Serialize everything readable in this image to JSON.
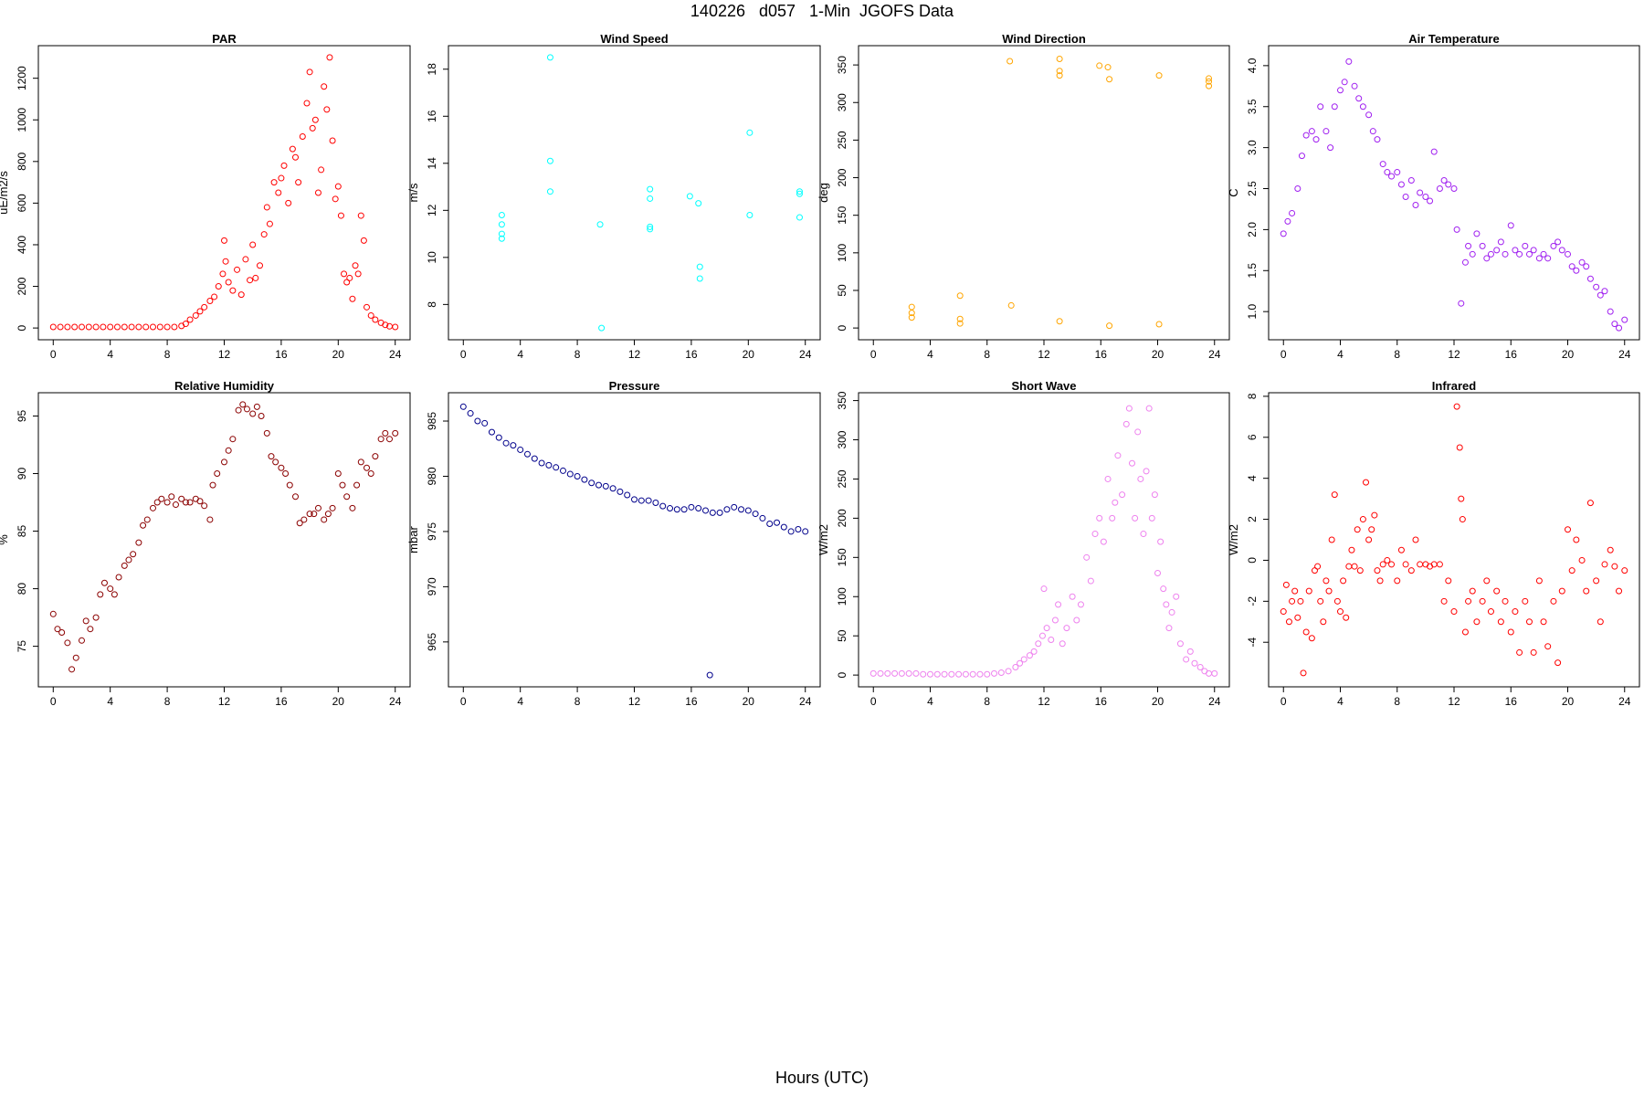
{
  "title": "140226   d057   1-Min  JGOFS Data",
  "xcaption": "Hours (UTC)",
  "chart_data": [
    {
      "type": "scatter",
      "title": "PAR",
      "ylabel": "uE/m2/s",
      "color": "#ff0000",
      "xlim": [
        0,
        24
      ],
      "ylim": [
        0,
        1300
      ],
      "xticks": [
        0,
        4,
        8,
        12,
        16,
        20,
        24
      ],
      "yticks": [
        0,
        200,
        400,
        600,
        800,
        1000,
        1200
      ],
      "x": [
        0,
        0.5,
        1,
        1.5,
        2,
        2.5,
        3,
        3.5,
        4,
        4.5,
        5,
        5.5,
        6,
        6.5,
        7,
        7.5,
        8,
        8.5,
        9,
        9.3,
        9.6,
        10,
        10.3,
        10.6,
        11,
        11.3,
        11.6,
        11.9,
        12,
        12.1,
        12.3,
        12.6,
        12.9,
        13.2,
        13.5,
        13.8,
        14,
        14.2,
        14.5,
        14.8,
        15,
        15.2,
        15.5,
        15.8,
        16,
        16.2,
        16.5,
        16.8,
        17,
        17.2,
        17.5,
        17.8,
        18,
        18.2,
        18.4,
        18.6,
        18.8,
        19,
        19.2,
        19.4,
        19.6,
        19.8,
        20,
        20.2,
        20.4,
        20.6,
        20.8,
        21,
        21.2,
        21.4,
        21.6,
        21.8,
        22,
        22.3,
        22.6,
        23,
        23.3,
        23.6,
        24
      ],
      "y": [
        5,
        5,
        5,
        5,
        5,
        5,
        5,
        5,
        5,
        5,
        5,
        5,
        5,
        5,
        5,
        5,
        5,
        5,
        10,
        20,
        40,
        60,
        80,
        100,
        130,
        150,
        200,
        260,
        420,
        320,
        220,
        180,
        280,
        160,
        330,
        230,
        400,
        240,
        300,
        450,
        580,
        500,
        700,
        650,
        720,
        780,
        600,
        860,
        820,
        700,
        920,
        1080,
        1230,
        960,
        1000,
        650,
        760,
        1160,
        1050,
        1300,
        900,
        620,
        680,
        540,
        260,
        220,
        240,
        140,
        300,
        260,
        540,
        420,
        100,
        60,
        40,
        25,
        15,
        8,
        5
      ]
    },
    {
      "type": "scatter",
      "title": "Wind Speed",
      "ylabel": "m/s",
      "color": "#00ffff",
      "xlim": [
        0,
        24
      ],
      "ylim": [
        7,
        18.5
      ],
      "xticks": [
        0,
        4,
        8,
        12,
        16,
        20,
        24
      ],
      "yticks": [
        8,
        10,
        12,
        14,
        16,
        18
      ],
      "x": [
        2.7,
        2.7,
        2.7,
        2.7,
        6.1,
        6.1,
        6.1,
        9.6,
        9.7,
        13.1,
        13.1,
        13.1,
        13.1,
        15.9,
        16.5,
        16.6,
        16.6,
        20.1,
        20.1,
        23.6,
        23.6,
        23.6
      ],
      "y": [
        11.8,
        11.4,
        11.0,
        10.8,
        18.5,
        14.1,
        12.8,
        11.4,
        7.0,
        12.9,
        12.5,
        11.3,
        11.2,
        12.6,
        12.3,
        9.6,
        9.1,
        15.3,
        11.8,
        12.8,
        12.7,
        11.7
      ]
    },
    {
      "type": "scatter",
      "title": "Wind Direction",
      "ylabel": "deg",
      "color": "#ffa500",
      "xlim": [
        0,
        24
      ],
      "ylim": [
        0,
        360
      ],
      "xticks": [
        0,
        4,
        8,
        12,
        16,
        20,
        24
      ],
      "yticks": [
        0,
        50,
        100,
        150,
        200,
        250,
        300,
        350
      ],
      "x": [
        2.7,
        2.7,
        2.7,
        6.1,
        6.1,
        6.1,
        9.6,
        9.7,
        13.1,
        13.1,
        13.1,
        13.1,
        15.9,
        16.5,
        16.6,
        16.6,
        20.1,
        20.1,
        23.6,
        23.6,
        23.6
      ],
      "y": [
        28,
        20,
        14,
        43,
        12,
        6,
        355,
        30,
        358,
        342,
        336,
        9,
        349,
        347,
        331,
        3,
        336,
        5,
        332,
        328,
        322
      ]
    },
    {
      "type": "scatter",
      "title": "Air Temperature",
      "ylabel": "C",
      "color": "#a020f0",
      "xlim": [
        0,
        24
      ],
      "ylim": [
        0.8,
        4.1
      ],
      "xticks": [
        0,
        4,
        8,
        12,
        16,
        20,
        24
      ],
      "yticks": [
        1.0,
        1.5,
        2.0,
        2.5,
        3.0,
        3.5,
        4.0
      ],
      "x": [
        0,
        0.3,
        0.6,
        1,
        1.3,
        1.6,
        2,
        2.3,
        2.6,
        3,
        3.3,
        3.6,
        4,
        4.3,
        4.6,
        5,
        5.3,
        5.6,
        6,
        6.3,
        6.6,
        7,
        7.3,
        7.6,
        8,
        8.3,
        8.6,
        9,
        9.3,
        9.6,
        10,
        10.3,
        10.6,
        11,
        11.3,
        11.6,
        12,
        12.2,
        12.5,
        12.8,
        13,
        13.3,
        13.6,
        14,
        14.3,
        14.6,
        15,
        15.3,
        15.6,
        16,
        16.3,
        16.6,
        17,
        17.3,
        17.6,
        18,
        18.3,
        18.6,
        19,
        19.3,
        19.6,
        20,
        20.3,
        20.6,
        21,
        21.3,
        21.6,
        22,
        22.3,
        22.6,
        23,
        23.3,
        23.6,
        24
      ],
      "y": [
        1.95,
        2.1,
        2.2,
        2.5,
        2.9,
        3.15,
        3.2,
        3.1,
        3.5,
        3.2,
        3.0,
        3.5,
        3.7,
        3.8,
        4.05,
        3.75,
        3.6,
        3.5,
        3.4,
        3.2,
        3.1,
        2.8,
        2.7,
        2.65,
        2.7,
        2.55,
        2.4,
        2.6,
        2.3,
        2.45,
        2.4,
        2.35,
        2.95,
        2.5,
        2.6,
        2.55,
        2.5,
        2.0,
        1.1,
        1.6,
        1.8,
        1.7,
        1.95,
        1.8,
        1.65,
        1.7,
        1.75,
        1.85,
        1.7,
        2.05,
        1.75,
        1.7,
        1.8,
        1.7,
        1.75,
        1.65,
        1.7,
        1.65,
        1.8,
        1.85,
        1.75,
        1.7,
        1.55,
        1.5,
        1.6,
        1.55,
        1.4,
        1.3,
        1.2,
        1.25,
        1.0,
        0.85,
        0.8,
        0.9
      ]
    },
    {
      "type": "scatter",
      "title": "Relative Humidity",
      "ylabel": "%",
      "color": "#8b0000",
      "xlim": [
        0,
        24
      ],
      "ylim": [
        72.5,
        96
      ],
      "xticks": [
        0,
        4,
        8,
        12,
        16,
        20,
        24
      ],
      "yticks": [
        75,
        80,
        85,
        90,
        95
      ],
      "x": [
        0,
        0.3,
        0.6,
        1,
        1.3,
        1.6,
        2,
        2.3,
        2.6,
        3,
        3.3,
        3.6,
        4,
        4.3,
        4.6,
        5,
        5.3,
        5.6,
        6,
        6.3,
        6.6,
        7,
        7.3,
        7.6,
        8,
        8.3,
        8.6,
        9,
        9.3,
        9.6,
        10,
        10.3,
        10.6,
        11,
        11.2,
        11.5,
        12,
        12.3,
        12.6,
        13,
        13.3,
        13.6,
        14,
        14.3,
        14.6,
        15,
        15.3,
        15.6,
        16,
        16.3,
        16.6,
        17,
        17.3,
        17.6,
        18,
        18.3,
        18.6,
        19,
        19.3,
        19.6,
        20,
        20.3,
        20.6,
        21,
        21.3,
        21.6,
        22,
        22.3,
        22.6,
        23,
        23.3,
        23.6,
        24
      ],
      "y": [
        77.8,
        76.5,
        76.2,
        75.3,
        73.0,
        74.0,
        75.5,
        77.2,
        76.5,
        77.5,
        79.5,
        80.5,
        80.0,
        79.5,
        81.0,
        82.0,
        82.5,
        83.0,
        84.0,
        85.5,
        86.0,
        87.0,
        87.5,
        87.8,
        87.5,
        88.0,
        87.3,
        87.8,
        87.5,
        87.5,
        87.8,
        87.6,
        87.2,
        86.0,
        89.0,
        90.0,
        91.0,
        92.0,
        93.0,
        95.5,
        96.0,
        95.6,
        95.2,
        95.8,
        95.0,
        93.5,
        91.5,
        91.0,
        90.5,
        90.0,
        89.0,
        88.0,
        85.7,
        86.0,
        86.5,
        86.5,
        87.0,
        86.0,
        86.5,
        87.0,
        90.0,
        89.0,
        88.0,
        87.0,
        89.0,
        91.0,
        90.5,
        90.0,
        91.5,
        93.0,
        93.5,
        93.0,
        93.5
      ]
    },
    {
      "type": "scatter",
      "title": "Pressure",
      "ylabel": "mbar",
      "color": "#00008b",
      "xlim": [
        0,
        24
      ],
      "ylim": [
        962,
        986.5
      ],
      "xticks": [
        0,
        4,
        8,
        12,
        16,
        20,
        24
      ],
      "yticks": [
        965,
        970,
        975,
        980,
        985
      ],
      "x": [
        0,
        0.5,
        1,
        1.5,
        2,
        2.5,
        3,
        3.5,
        4,
        4.5,
        5,
        5.5,
        6,
        6.5,
        7,
        7.5,
        8,
        8.5,
        9,
        9.5,
        10,
        10.5,
        11,
        11.5,
        12,
        12.5,
        13,
        13.5,
        14,
        14.5,
        15,
        15.5,
        16,
        16.5,
        17,
        17.3,
        17.5,
        18,
        18.5,
        19,
        19.5,
        20,
        20.5,
        21,
        21.5,
        22,
        22.5,
        23,
        23.5,
        24
      ],
      "y": [
        986.3,
        985.7,
        985.0,
        984.8,
        984.0,
        983.5,
        983.0,
        982.8,
        982.4,
        982.0,
        981.6,
        981.2,
        981.0,
        980.8,
        980.5,
        980.2,
        980.0,
        979.7,
        979.4,
        979.2,
        979.1,
        978.9,
        978.6,
        978.3,
        977.9,
        977.8,
        977.8,
        977.6,
        977.3,
        977.1,
        977.0,
        977.0,
        977.2,
        977.1,
        976.9,
        962.0,
        976.7,
        976.7,
        977.0,
        977.2,
        977.0,
        976.9,
        976.6,
        976.2,
        975.7,
        975.8,
        975.4,
        975.0,
        975.2,
        975.0
      ]
    },
    {
      "type": "scatter",
      "title": "Short Wave",
      "ylabel": "W/m2",
      "color": "#ee82ee",
      "xlim": [
        0,
        24
      ],
      "ylim": [
        0,
        345
      ],
      "xticks": [
        0,
        4,
        8,
        12,
        16,
        20,
        24
      ],
      "yticks": [
        0,
        50,
        100,
        150,
        200,
        250,
        300,
        350
      ],
      "x": [
        0,
        0.5,
        1,
        1.5,
        2,
        2.5,
        3,
        3.5,
        4,
        4.5,
        5,
        5.5,
        6,
        6.5,
        7,
        7.5,
        8,
        8.5,
        9,
        9.5,
        10,
        10.3,
        10.6,
        11,
        11.3,
        11.6,
        11.9,
        12,
        12.2,
        12.5,
        12.8,
        13,
        13.3,
        13.6,
        14,
        14.3,
        14.6,
        15,
        15.3,
        15.6,
        15.9,
        16.2,
        16.5,
        16.8,
        17,
        17.2,
        17.5,
        17.8,
        18,
        18.2,
        18.4,
        18.6,
        18.8,
        19,
        19.2,
        19.4,
        19.6,
        19.8,
        20,
        20.2,
        20.4,
        20.6,
        20.8,
        21,
        21.3,
        21.6,
        22,
        22.3,
        22.6,
        23,
        23.3,
        23.6,
        24
      ],
      "y": [
        2,
        2,
        2,
        2,
        2,
        2,
        2,
        1,
        1,
        1,
        1,
        1,
        1,
        1,
        1,
        1,
        1,
        2,
        3,
        5,
        10,
        15,
        20,
        25,
        30,
        40,
        50,
        110,
        60,
        45,
        70,
        90,
        40,
        60,
        100,
        70,
        90,
        150,
        120,
        180,
        200,
        170,
        250,
        200,
        220,
        280,
        230,
        320,
        340,
        270,
        200,
        310,
        250,
        180,
        260,
        340,
        200,
        230,
        130,
        170,
        110,
        90,
        60,
        80,
        100,
        40,
        20,
        30,
        15,
        10,
        5,
        2,
        2
      ]
    },
    {
      "type": "scatter",
      "title": "Infrared",
      "ylabel": "W/m2",
      "color": "#ff0000",
      "xlim": [
        0,
        24
      ],
      "ylim": [
        -5.6,
        7.6
      ],
      "xticks": [
        0,
        4,
        8,
        12,
        16,
        20,
        24
      ],
      "yticks": [
        -4,
        -2,
        0,
        2,
        4,
        6,
        8
      ],
      "x": [
        0,
        0.2,
        0.4,
        0.6,
        0.8,
        1,
        1.2,
        1.4,
        1.6,
        1.8,
        2,
        2.2,
        2.4,
        2.6,
        2.8,
        3,
        3.2,
        3.4,
        3.6,
        3.8,
        4,
        4.2,
        4.4,
        4.6,
        4.8,
        5,
        5.2,
        5.4,
        5.6,
        5.8,
        6,
        6.2,
        6.4,
        6.6,
        6.8,
        7,
        7.3,
        7.6,
        8,
        8.3,
        8.6,
        9,
        9.3,
        9.6,
        10,
        10.3,
        10.6,
        11,
        11.3,
        11.6,
        12,
        12.2,
        12.4,
        12.5,
        12.6,
        12.8,
        13,
        13.3,
        13.6,
        14,
        14.3,
        14.6,
        15,
        15.3,
        15.6,
        16,
        16.3,
        16.6,
        17,
        17.3,
        17.6,
        18,
        18.3,
        18.6,
        19,
        19.3,
        19.6,
        20,
        20.3,
        20.6,
        21,
        21.3,
        21.6,
        22,
        22.3,
        22.6,
        23,
        23.3,
        23.6,
        24
      ],
      "y": [
        -2.5,
        -1.2,
        -3.0,
        -2.0,
        -1.5,
        -2.8,
        -2.0,
        -5.5,
        -3.5,
        -1.5,
        -3.8,
        -0.5,
        -0.3,
        -2.0,
        -3.0,
        -1.0,
        -1.5,
        1.0,
        3.2,
        -2.0,
        -2.5,
        -1.0,
        -2.8,
        -0.3,
        0.5,
        -0.3,
        1.5,
        -0.5,
        2.0,
        3.8,
        1.0,
        1.5,
        2.2,
        -0.5,
        -1.0,
        -0.2,
        0.0,
        -0.2,
        -1.0,
        0.5,
        -0.2,
        -0.5,
        1.0,
        -0.2,
        -0.2,
        -0.3,
        -0.2,
        -0.2,
        -2.0,
        -1.0,
        -2.5,
        7.5,
        5.5,
        3.0,
        2.0,
        -3.5,
        -2.0,
        -1.5,
        -3.0,
        -2.0,
        -1.0,
        -2.5,
        -1.5,
        -3.0,
        -2.0,
        -3.5,
        -2.5,
        -4.5,
        -2.0,
        -3.0,
        -4.5,
        -1.0,
        -3.0,
        -4.2,
        -2.0,
        -5.0,
        -1.5,
        1.5,
        -0.5,
        1.0,
        0.0,
        -1.5,
        2.8,
        -1.0,
        -3.0,
        -0.2,
        0.5,
        -0.3,
        -1.5,
        -0.5
      ]
    }
  ]
}
